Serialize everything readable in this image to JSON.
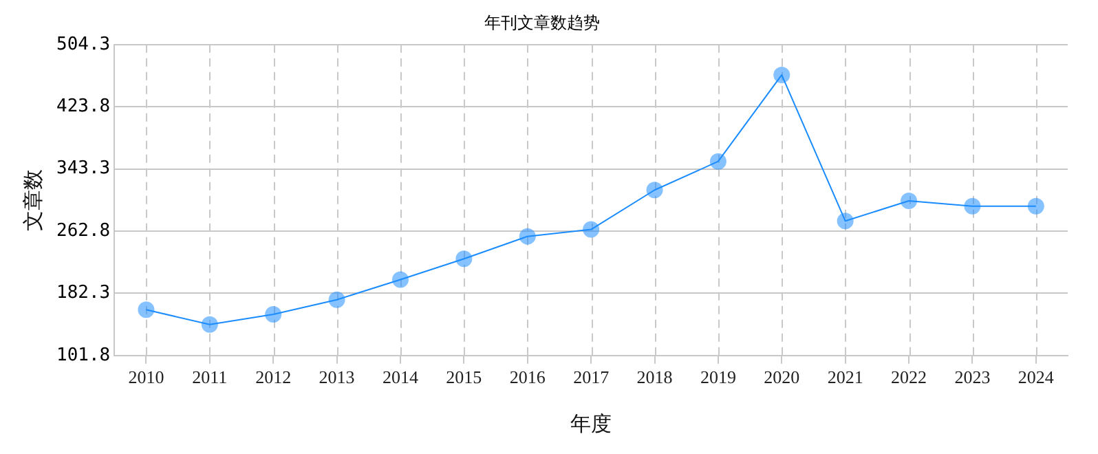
{
  "chart_data": {
    "type": "line",
    "title": "年刊文章数趋势",
    "xlabel": "年度",
    "ylabel": "文章数",
    "categories": [
      "2010",
      "2011",
      "2012",
      "2013",
      "2014",
      "2015",
      "2016",
      "2017",
      "2018",
      "2019",
      "2020",
      "2021",
      "2022",
      "2023",
      "2024"
    ],
    "series": [
      {
        "color": "#1a8cff",
        "values": [
          161,
          142,
          155,
          174,
          200,
          227,
          256,
          265,
          316,
          353,
          465,
          276,
          302,
          295,
          295
        ]
      }
    ],
    "ylim": [
      101.8,
      504.3
    ],
    "yticks": [
      101.8,
      182.3,
      262.8,
      343.3,
      423.8,
      504.3
    ],
    "grid": true,
    "legend": false,
    "marker": "circle",
    "line_style": "solid"
  }
}
